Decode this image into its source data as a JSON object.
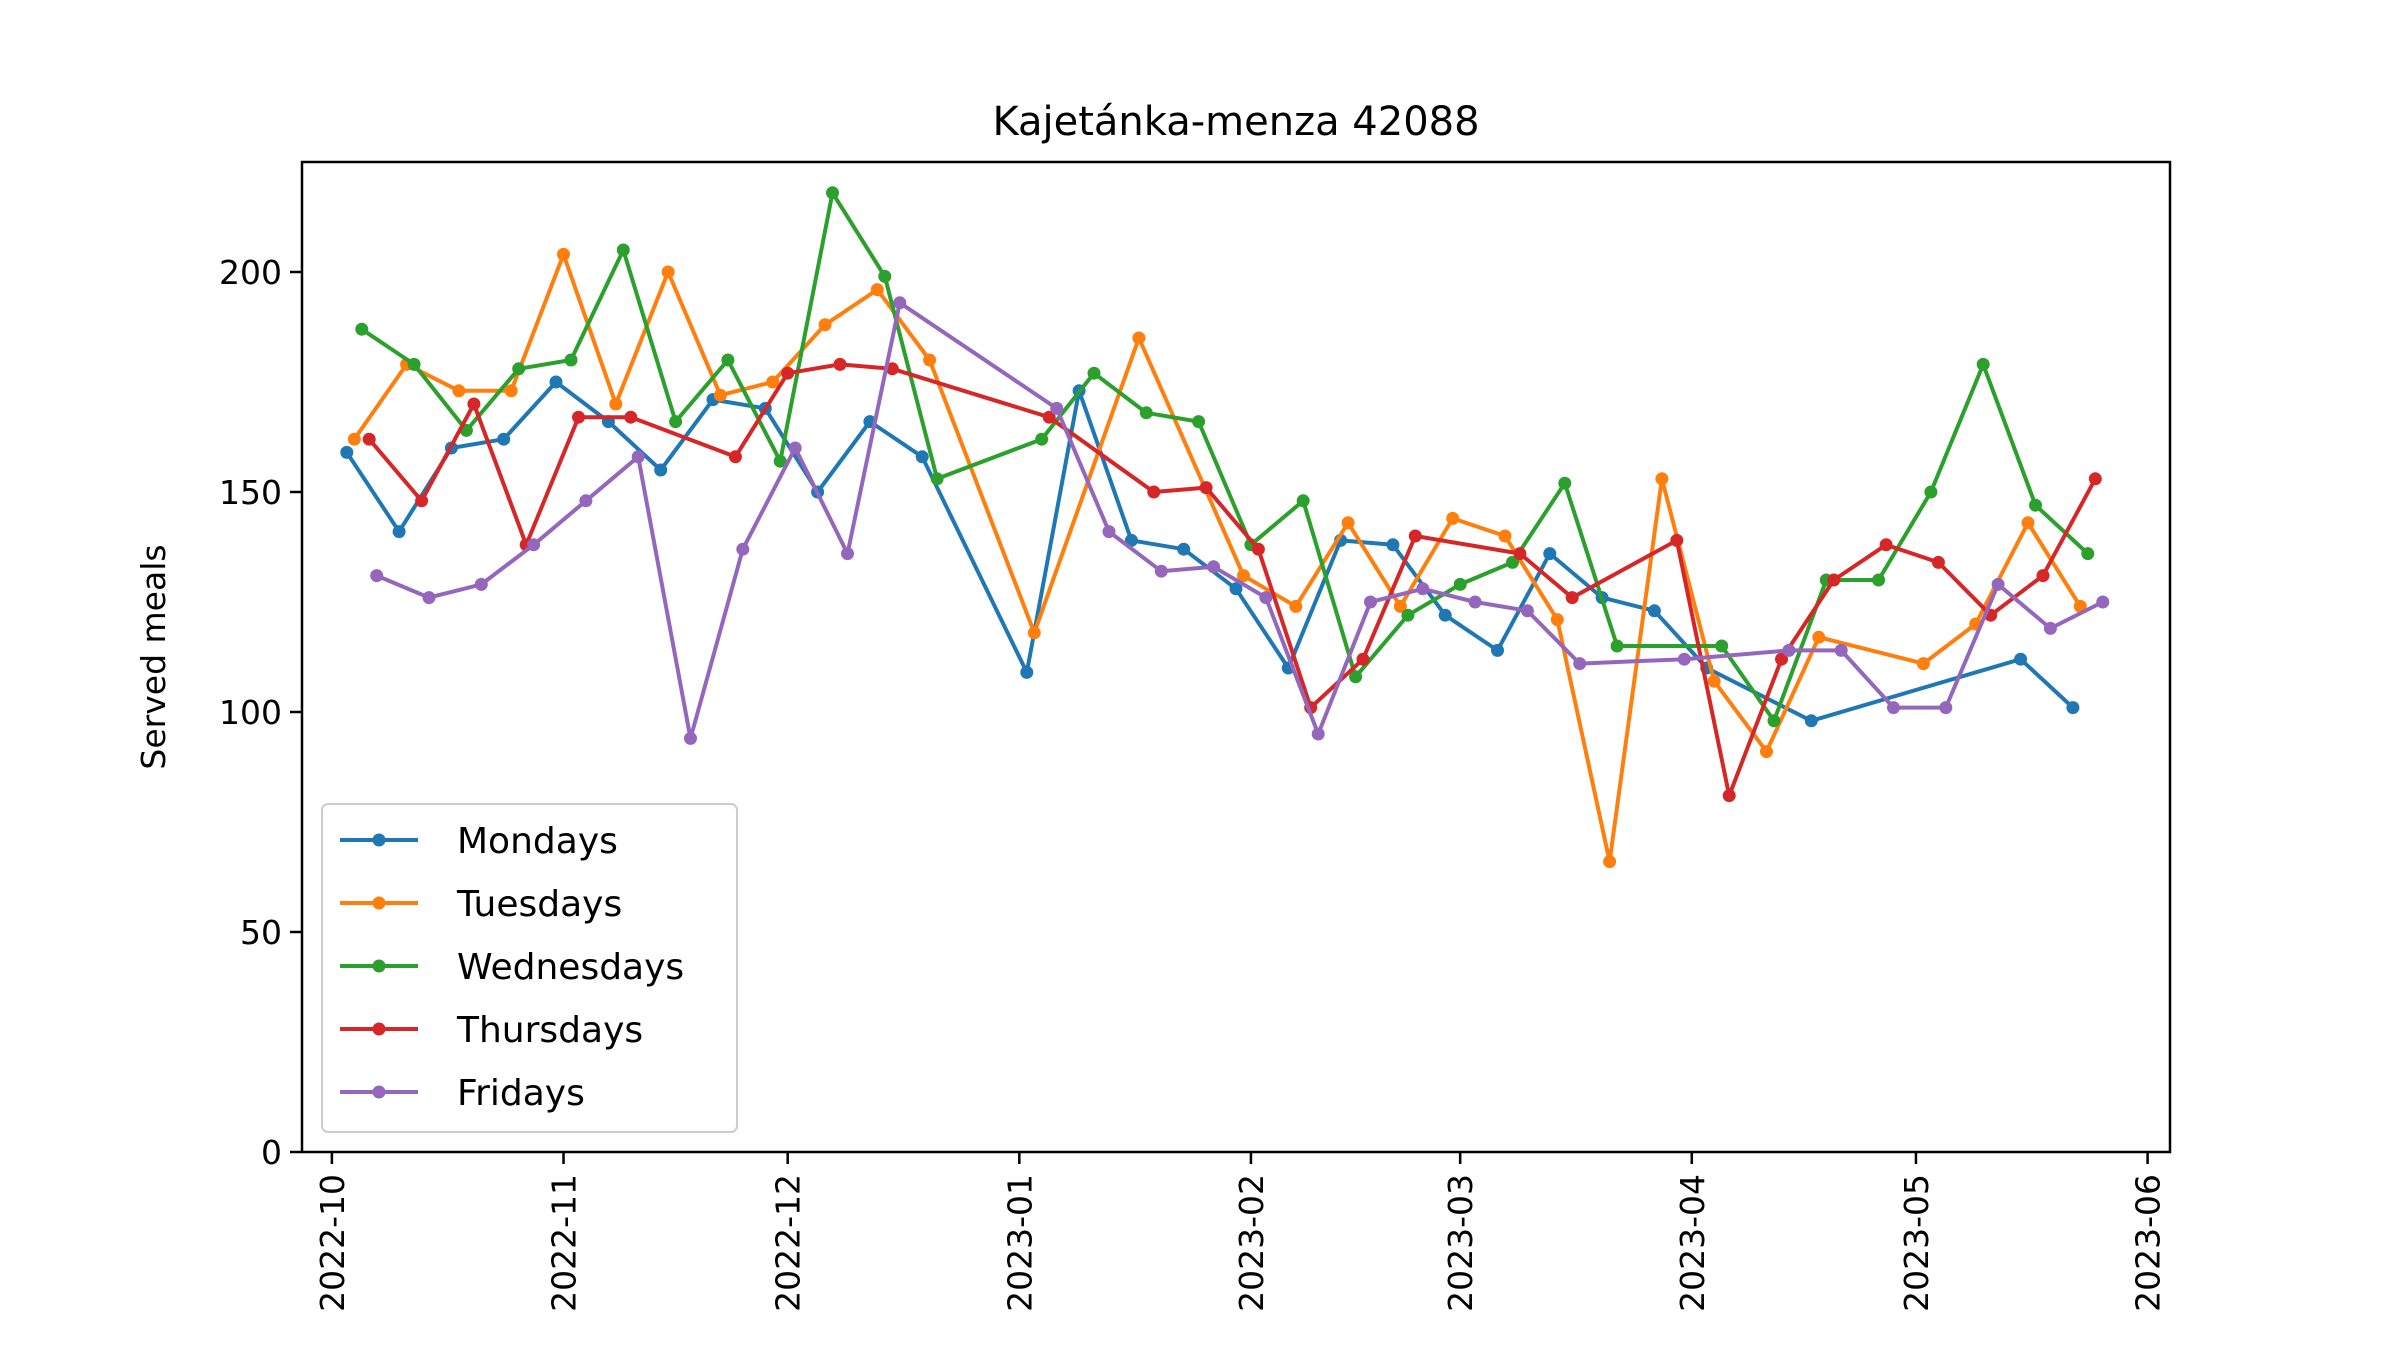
{
  "chart_data": {
    "type": "line",
    "title": "Kajetánka-menza 42088",
    "xlabel": "",
    "ylabel": "Served meals",
    "xlim": [
      "2022-09-27",
      "2023-06-04"
    ],
    "ylim": [
      0,
      225
    ],
    "y_ticks": [
      0,
      50,
      100,
      150,
      200
    ],
    "x_ticks": [
      "2022-10-01",
      "2022-11-01",
      "2022-12-01",
      "2023-01-01",
      "2023-02-01",
      "2023-03-01",
      "2023-04-01",
      "2023-05-01",
      "2023-06-01"
    ],
    "x_tick_labels": [
      "2022-10",
      "2022-11",
      "2022-12",
      "2023-01",
      "2023-02",
      "2023-03",
      "2023-04",
      "2023-05",
      "2023-06"
    ],
    "grid": false,
    "legend_position": "lower-left",
    "series": [
      {
        "name": "Mondays",
        "color": "#1f77b4",
        "points": [
          {
            "x": "2022-10-03",
            "y": 159
          },
          {
            "x": "2022-10-10",
            "y": 141
          },
          {
            "x": "2022-10-17",
            "y": 160
          },
          {
            "x": "2022-10-24",
            "y": 162
          },
          {
            "x": "2022-10-31",
            "y": 175
          },
          {
            "x": "2022-11-07",
            "y": 166
          },
          {
            "x": "2022-11-14",
            "y": 155
          },
          {
            "x": "2022-11-21",
            "y": 171
          },
          {
            "x": "2022-11-28",
            "y": 169
          },
          {
            "x": "2022-12-05",
            "y": 150
          },
          {
            "x": "2022-12-12",
            "y": 166
          },
          {
            "x": "2022-12-19",
            "y": 158
          },
          {
            "x": "2023-01-02",
            "y": 109
          },
          {
            "x": "2023-01-09",
            "y": 173
          },
          {
            "x": "2023-01-16",
            "y": 139
          },
          {
            "x": "2023-01-23",
            "y": 137
          },
          {
            "x": "2023-01-30",
            "y": 128
          },
          {
            "x": "2023-02-06",
            "y": 110
          },
          {
            "x": "2023-02-13",
            "y": 139
          },
          {
            "x": "2023-02-20",
            "y": 138
          },
          {
            "x": "2023-02-27",
            "y": 122
          },
          {
            "x": "2023-03-06",
            "y": 114
          },
          {
            "x": "2023-03-13",
            "y": 136
          },
          {
            "x": "2023-03-20",
            "y": 126
          },
          {
            "x": "2023-03-27",
            "y": 123
          },
          {
            "x": "2023-04-03",
            "y": 110
          },
          {
            "x": "2023-04-17",
            "y": 98
          },
          {
            "x": "2023-05-15",
            "y": 112
          },
          {
            "x": "2023-05-22",
            "y": 101
          }
        ]
      },
      {
        "name": "Tuesdays",
        "color": "#ff7f0e",
        "points": [
          {
            "x": "2022-10-04",
            "y": 162
          },
          {
            "x": "2022-10-11",
            "y": 179
          },
          {
            "x": "2022-10-18",
            "y": 173
          },
          {
            "x": "2022-10-25",
            "y": 173
          },
          {
            "x": "2022-11-01",
            "y": 204
          },
          {
            "x": "2022-11-08",
            "y": 170
          },
          {
            "x": "2022-11-15",
            "y": 200
          },
          {
            "x": "2022-11-22",
            "y": 172
          },
          {
            "x": "2022-11-29",
            "y": 175
          },
          {
            "x": "2022-12-06",
            "y": 188
          },
          {
            "x": "2022-12-13",
            "y": 196
          },
          {
            "x": "2022-12-20",
            "y": 180
          },
          {
            "x": "2023-01-03",
            "y": 118
          },
          {
            "x": "2023-01-17",
            "y": 185
          },
          {
            "x": "2023-01-31",
            "y": 131
          },
          {
            "x": "2023-02-07",
            "y": 124
          },
          {
            "x": "2023-02-14",
            "y": 143
          },
          {
            "x": "2023-02-21",
            "y": 124
          },
          {
            "x": "2023-02-28",
            "y": 144
          },
          {
            "x": "2023-03-07",
            "y": 140
          },
          {
            "x": "2023-03-14",
            "y": 121
          },
          {
            "x": "2023-03-21",
            "y": 66
          },
          {
            "x": "2023-03-28",
            "y": 153
          },
          {
            "x": "2023-04-04",
            "y": 107
          },
          {
            "x": "2023-04-11",
            "y": 91
          },
          {
            "x": "2023-04-18",
            "y": 117
          },
          {
            "x": "2023-05-02",
            "y": 111
          },
          {
            "x": "2023-05-09",
            "y": 120
          },
          {
            "x": "2023-05-16",
            "y": 143
          },
          {
            "x": "2023-05-23",
            "y": 124
          }
        ]
      },
      {
        "name": "Wednesdays",
        "color": "#2ca02c",
        "points": [
          {
            "x": "2022-10-05",
            "y": 187
          },
          {
            "x": "2022-10-12",
            "y": 179
          },
          {
            "x": "2022-10-19",
            "y": 164
          },
          {
            "x": "2022-10-26",
            "y": 178
          },
          {
            "x": "2022-11-02",
            "y": 180
          },
          {
            "x": "2022-11-09",
            "y": 205
          },
          {
            "x": "2022-11-16",
            "y": 166
          },
          {
            "x": "2022-11-23",
            "y": 180
          },
          {
            "x": "2022-11-30",
            "y": 157
          },
          {
            "x": "2022-12-07",
            "y": 218
          },
          {
            "x": "2022-12-14",
            "y": 199
          },
          {
            "x": "2022-12-21",
            "y": 153
          },
          {
            "x": "2023-01-04",
            "y": 162
          },
          {
            "x": "2023-01-11",
            "y": 177
          },
          {
            "x": "2023-01-18",
            "y": 168
          },
          {
            "x": "2023-01-25",
            "y": 166
          },
          {
            "x": "2023-02-01",
            "y": 138
          },
          {
            "x": "2023-02-08",
            "y": 148
          },
          {
            "x": "2023-02-15",
            "y": 108
          },
          {
            "x": "2023-02-22",
            "y": 122
          },
          {
            "x": "2023-03-01",
            "y": 129
          },
          {
            "x": "2023-03-08",
            "y": 134
          },
          {
            "x": "2023-03-15",
            "y": 152
          },
          {
            "x": "2023-03-22",
            "y": 115
          },
          {
            "x": "2023-04-05",
            "y": 115
          },
          {
            "x": "2023-04-12",
            "y": 98
          },
          {
            "x": "2023-04-19",
            "y": 130
          },
          {
            "x": "2023-04-26",
            "y": 130
          },
          {
            "x": "2023-05-03",
            "y": 150
          },
          {
            "x": "2023-05-10",
            "y": 179
          },
          {
            "x": "2023-05-17",
            "y": 147
          },
          {
            "x": "2023-05-24",
            "y": 136
          }
        ]
      },
      {
        "name": "Thursdays",
        "color": "#d62728",
        "points": [
          {
            "x": "2022-10-06",
            "y": 162
          },
          {
            "x": "2022-10-13",
            "y": 148
          },
          {
            "x": "2022-10-20",
            "y": 170
          },
          {
            "x": "2022-10-27",
            "y": 138
          },
          {
            "x": "2022-11-03",
            "y": 167
          },
          {
            "x": "2022-11-10",
            "y": 167
          },
          {
            "x": "2022-11-24",
            "y": 158
          },
          {
            "x": "2022-12-01",
            "y": 177
          },
          {
            "x": "2022-12-08",
            "y": 179
          },
          {
            "x": "2022-12-15",
            "y": 178
          },
          {
            "x": "2023-01-05",
            "y": 167
          },
          {
            "x": "2023-01-19",
            "y": 150
          },
          {
            "x": "2023-01-26",
            "y": 151
          },
          {
            "x": "2023-02-02",
            "y": 137
          },
          {
            "x": "2023-02-09",
            "y": 101
          },
          {
            "x": "2023-02-16",
            "y": 112
          },
          {
            "x": "2023-02-23",
            "y": 140
          },
          {
            "x": "2023-03-09",
            "y": 136
          },
          {
            "x": "2023-03-16",
            "y": 126
          },
          {
            "x": "2023-03-30",
            "y": 139
          },
          {
            "x": "2023-04-06",
            "y": 81
          },
          {
            "x": "2023-04-13",
            "y": 112
          },
          {
            "x": "2023-04-20",
            "y": 130
          },
          {
            "x": "2023-04-27",
            "y": 138
          },
          {
            "x": "2023-05-04",
            "y": 134
          },
          {
            "x": "2023-05-11",
            "y": 122
          },
          {
            "x": "2023-05-18",
            "y": 131
          },
          {
            "x": "2023-05-25",
            "y": 153
          }
        ]
      },
      {
        "name": "Fridays",
        "color": "#9467bd",
        "points": [
          {
            "x": "2022-10-07",
            "y": 131
          },
          {
            "x": "2022-10-14",
            "y": 126
          },
          {
            "x": "2022-10-21",
            "y": 129
          },
          {
            "x": "2022-10-28",
            "y": 138
          },
          {
            "x": "2022-11-04",
            "y": 148
          },
          {
            "x": "2022-11-11",
            "y": 158
          },
          {
            "x": "2022-11-18",
            "y": 94
          },
          {
            "x": "2022-11-25",
            "y": 137
          },
          {
            "x": "2022-12-02",
            "y": 160
          },
          {
            "x": "2022-12-09",
            "y": 136
          },
          {
            "x": "2022-12-16",
            "y": 193
          },
          {
            "x": "2023-01-06",
            "y": 169
          },
          {
            "x": "2023-01-13",
            "y": 141
          },
          {
            "x": "2023-01-20",
            "y": 132
          },
          {
            "x": "2023-01-27",
            "y": 133
          },
          {
            "x": "2023-02-03",
            "y": 126
          },
          {
            "x": "2023-02-10",
            "y": 95
          },
          {
            "x": "2023-02-17",
            "y": 125
          },
          {
            "x": "2023-02-24",
            "y": 128
          },
          {
            "x": "2023-03-03",
            "y": 125
          },
          {
            "x": "2023-03-10",
            "y": 123
          },
          {
            "x": "2023-03-17",
            "y": 111
          },
          {
            "x": "2023-03-31",
            "y": 112
          },
          {
            "x": "2023-04-14",
            "y": 114
          },
          {
            "x": "2023-04-21",
            "y": 114
          },
          {
            "x": "2023-04-28",
            "y": 101
          },
          {
            "x": "2023-05-05",
            "y": 101
          },
          {
            "x": "2023-05-12",
            "y": 129
          },
          {
            "x": "2023-05-19",
            "y": 119
          },
          {
            "x": "2023-05-26",
            "y": 125
          }
        ]
      }
    ]
  }
}
